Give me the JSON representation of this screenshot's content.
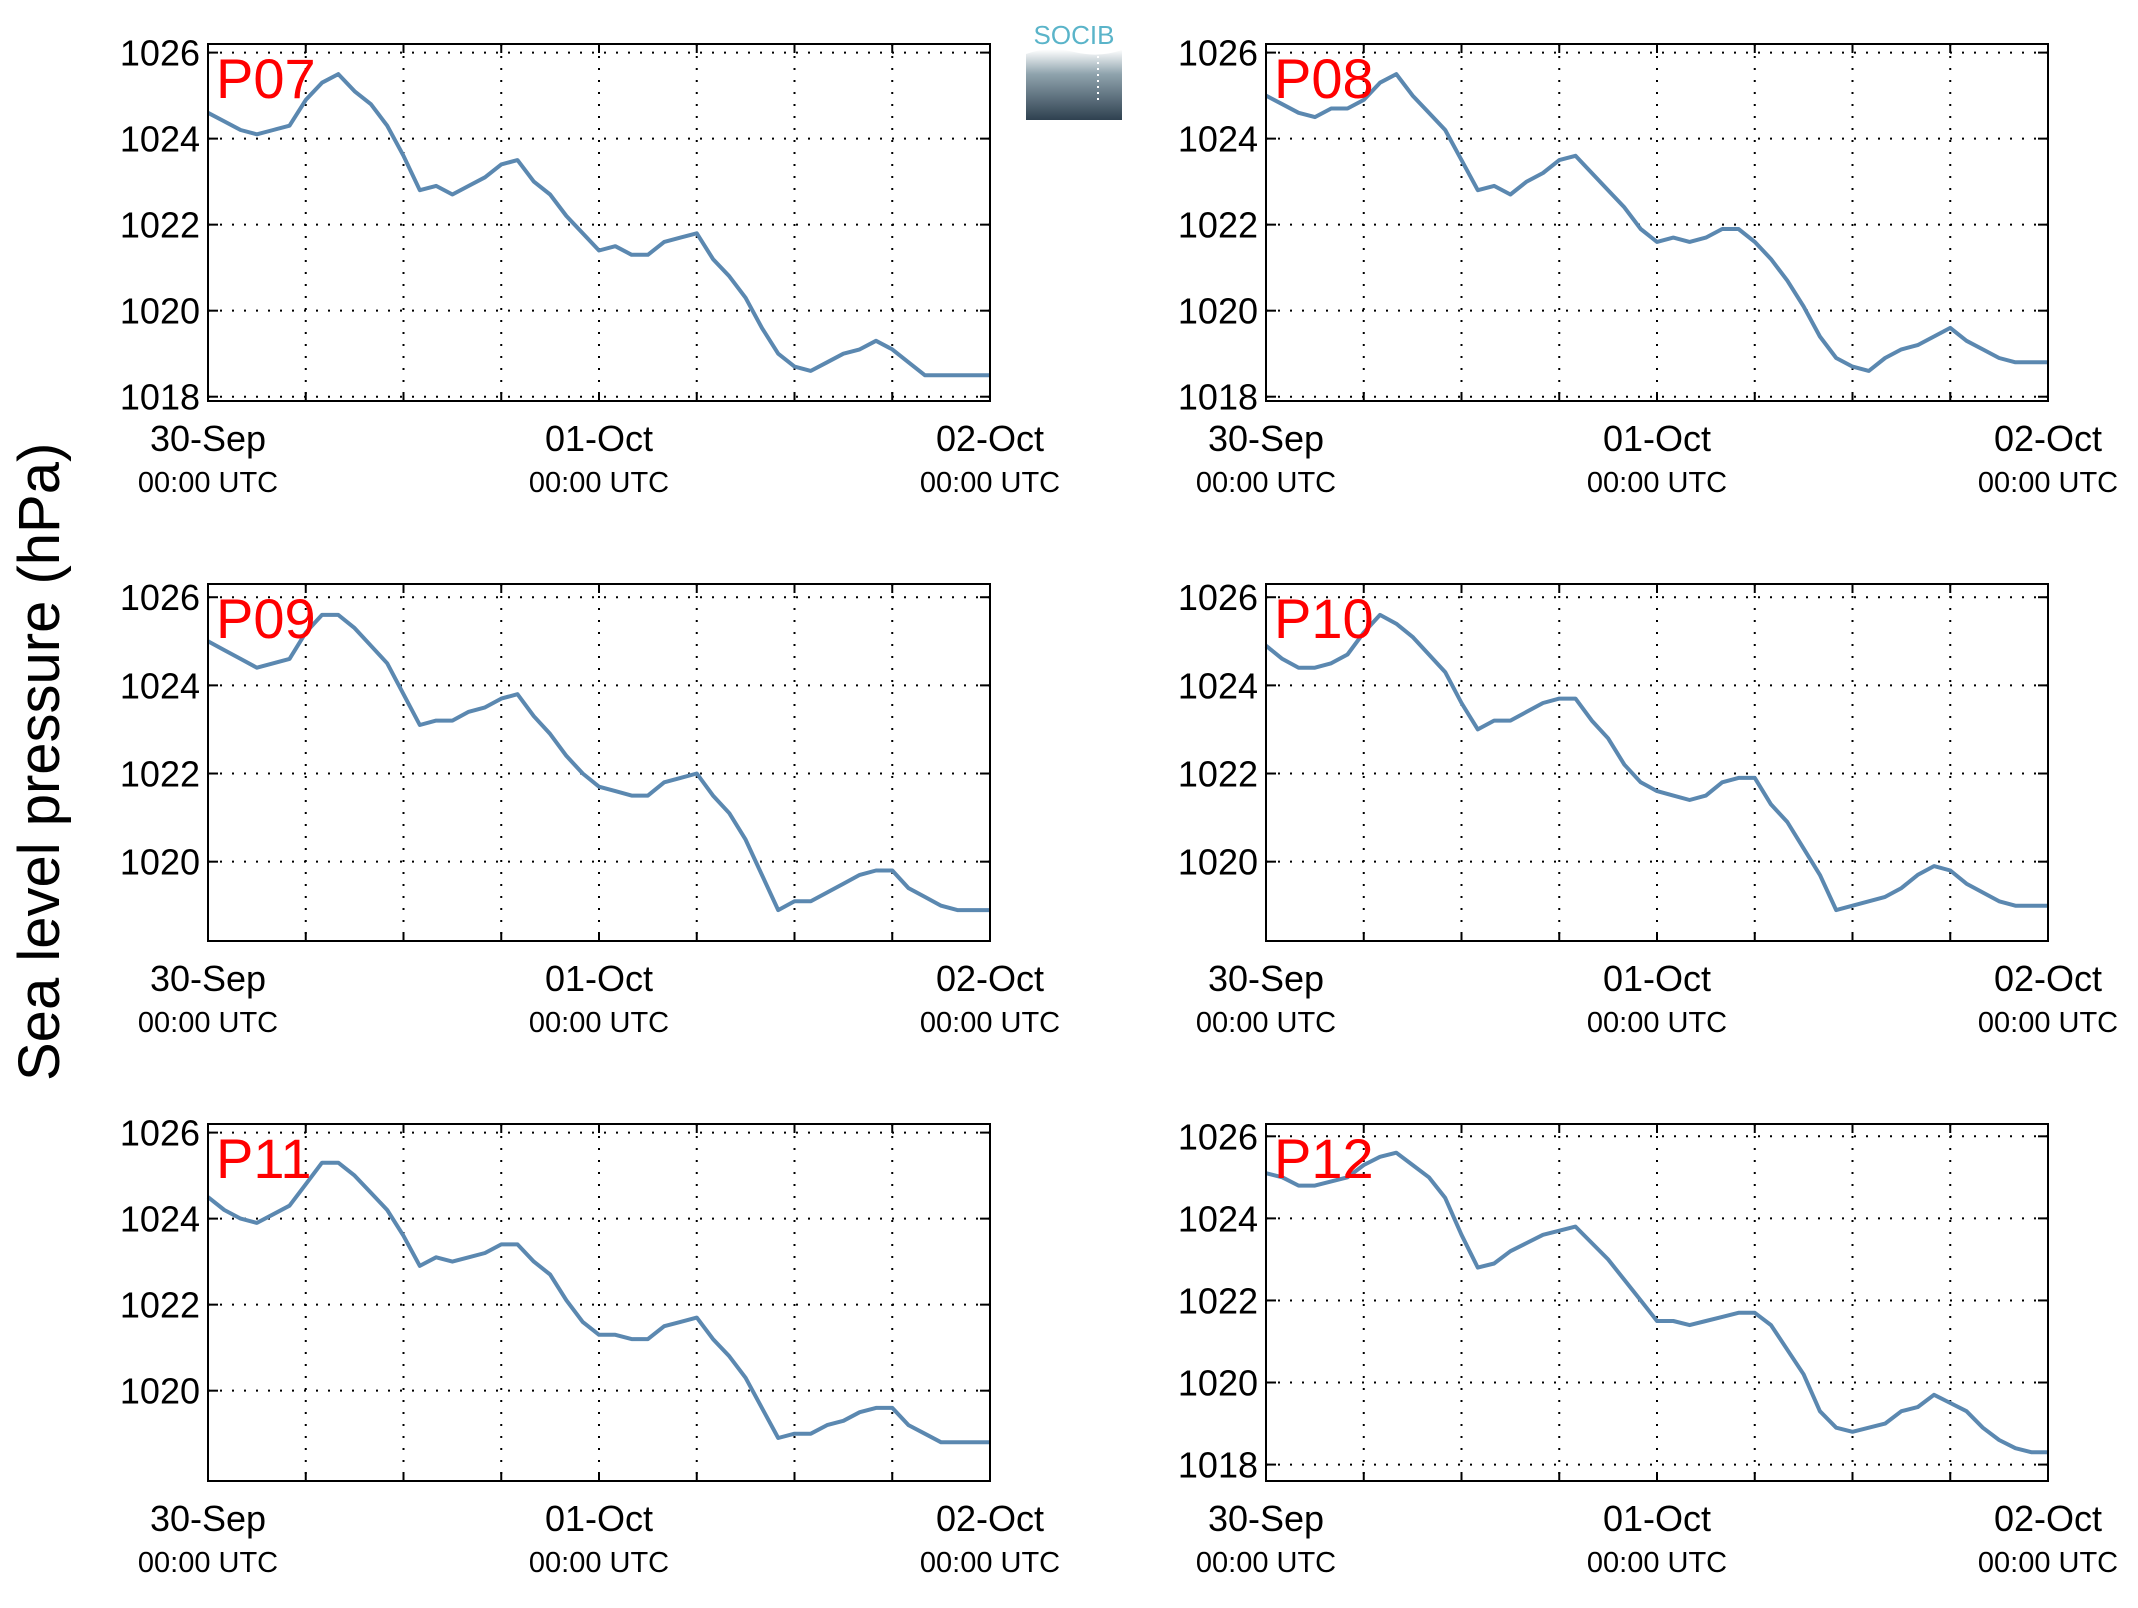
{
  "figure": {
    "ylabel": "Sea level pressure (hPa)",
    "logo_text": "SOCIB",
    "colors": {
      "line": "#5b88b0",
      "station_label": "#ff0000",
      "axis": "#000000",
      "grid": "#000000",
      "logo_top": "#5ab4c9",
      "logo_bottom": "#2f4150"
    }
  },
  "chart_data": [
    {
      "type": "line",
      "title": "P07",
      "xlabel": "",
      "ylabel": "Sea level pressure (hPa)",
      "xlim_hours": [
        0,
        48
      ],
      "ylim": [
        1017.9,
        1026.2
      ],
      "yticks": [
        1018,
        1020,
        1022,
        1024,
        1026
      ],
      "xticks": [
        {
          "top": "30-Sep",
          "bottom": "00:00 UTC"
        },
        {
          "top": "01-Oct",
          "bottom": "00:00 UTC"
        },
        {
          "top": "02-Oct",
          "bottom": "00:00 UTC"
        }
      ],
      "grid": true,
      "series": [
        {
          "x": [
            0,
            1,
            2,
            3,
            4,
            5,
            6,
            7,
            8,
            9,
            10,
            11,
            12,
            13,
            14,
            15,
            16,
            17,
            18,
            19,
            20,
            21,
            22,
            23,
            24,
            25,
            26,
            27,
            28,
            29,
            30,
            31,
            32,
            33,
            34,
            35,
            36,
            37,
            38,
            39,
            40,
            41,
            42,
            43,
            44,
            45,
            46,
            47,
            48
          ],
          "values": [
            1024.6,
            1024.4,
            1024.2,
            1024.1,
            1024.2,
            1024.3,
            1024.9,
            1025.3,
            1025.5,
            1025.1,
            1024.8,
            1024.3,
            1023.6,
            1022.8,
            1022.9,
            1022.7,
            1022.9,
            1023.1,
            1023.4,
            1023.5,
            1023.0,
            1022.7,
            1022.2,
            1021.8,
            1021.4,
            1021.5,
            1021.3,
            1021.3,
            1021.6,
            1021.7,
            1021.8,
            1021.2,
            1020.8,
            1020.3,
            1019.6,
            1019.0,
            1018.7,
            1018.6,
            1018.8,
            1019.0,
            1019.1,
            1019.3,
            1019.1,
            1018.8,
            1018.5,
            1018.5,
            1018.5,
            1018.5,
            1018.5
          ]
        }
      ]
    },
    {
      "type": "line",
      "title": "P08",
      "xlabel": "",
      "ylabel": "Sea level pressure (hPa)",
      "xlim_hours": [
        0,
        48
      ],
      "ylim": [
        1017.9,
        1026.2
      ],
      "yticks": [
        1018,
        1020,
        1022,
        1024,
        1026
      ],
      "xticks": [
        {
          "top": "30-Sep",
          "bottom": "00:00 UTC"
        },
        {
          "top": "01-Oct",
          "bottom": "00:00 UTC"
        },
        {
          "top": "02-Oct",
          "bottom": "00:00 UTC"
        }
      ],
      "grid": true,
      "series": [
        {
          "x": [
            0,
            1,
            2,
            3,
            4,
            5,
            6,
            7,
            8,
            9,
            10,
            11,
            12,
            13,
            14,
            15,
            16,
            17,
            18,
            19,
            20,
            21,
            22,
            23,
            24,
            25,
            26,
            27,
            28,
            29,
            30,
            31,
            32,
            33,
            34,
            35,
            36,
            37,
            38,
            39,
            40,
            41,
            42,
            43,
            44,
            45,
            46,
            47,
            48
          ],
          "values": [
            1025.0,
            1024.8,
            1024.6,
            1024.5,
            1024.7,
            1024.7,
            1024.9,
            1025.3,
            1025.5,
            1025.0,
            1024.6,
            1024.2,
            1023.5,
            1022.8,
            1022.9,
            1022.7,
            1023.0,
            1023.2,
            1023.5,
            1023.6,
            1023.2,
            1022.8,
            1022.4,
            1021.9,
            1021.6,
            1021.7,
            1021.6,
            1021.7,
            1021.9,
            1021.9,
            1021.6,
            1021.2,
            1020.7,
            1020.1,
            1019.4,
            1018.9,
            1018.7,
            1018.6,
            1018.9,
            1019.1,
            1019.2,
            1019.4,
            1019.6,
            1019.3,
            1019.1,
            1018.9,
            1018.8,
            1018.8,
            1018.8
          ]
        }
      ]
    },
    {
      "type": "line",
      "title": "P09",
      "xlabel": "",
      "ylabel": "Sea level pressure (hPa)",
      "xlim_hours": [
        0,
        48
      ],
      "ylim": [
        1018.2,
        1026.3
      ],
      "yticks": [
        1020,
        1022,
        1024,
        1026
      ],
      "xticks": [
        {
          "top": "30-Sep",
          "bottom": "00:00 UTC"
        },
        {
          "top": "01-Oct",
          "bottom": "00:00 UTC"
        },
        {
          "top": "02-Oct",
          "bottom": "00:00 UTC"
        }
      ],
      "grid": true,
      "series": [
        {
          "x": [
            0,
            1,
            2,
            3,
            4,
            5,
            6,
            7,
            8,
            9,
            10,
            11,
            12,
            13,
            14,
            15,
            16,
            17,
            18,
            19,
            20,
            21,
            22,
            23,
            24,
            25,
            26,
            27,
            28,
            29,
            30,
            31,
            32,
            33,
            34,
            35,
            36,
            37,
            38,
            39,
            40,
            41,
            42,
            43,
            44,
            45,
            46,
            47,
            48
          ],
          "values": [
            1025.0,
            1024.8,
            1024.6,
            1024.4,
            1024.5,
            1024.6,
            1025.2,
            1025.6,
            1025.6,
            1025.3,
            1024.9,
            1024.5,
            1023.8,
            1023.1,
            1023.2,
            1023.2,
            1023.4,
            1023.5,
            1023.7,
            1023.8,
            1023.3,
            1022.9,
            1022.4,
            1022.0,
            1021.7,
            1021.6,
            1021.5,
            1021.5,
            1021.8,
            1021.9,
            1022.0,
            1021.5,
            1021.1,
            1020.5,
            1019.7,
            1018.9,
            1019.1,
            1019.1,
            1019.3,
            1019.5,
            1019.7,
            1019.8,
            1019.8,
            1019.4,
            1019.2,
            1019.0,
            1018.9,
            1018.9,
            1018.9
          ]
        }
      ]
    },
    {
      "type": "line",
      "title": "P10",
      "xlabel": "",
      "ylabel": "Sea level pressure (hPa)",
      "xlim_hours": [
        0,
        48
      ],
      "ylim": [
        1018.2,
        1026.3
      ],
      "yticks": [
        1020,
        1022,
        1024,
        1026
      ],
      "xticks": [
        {
          "top": "30-Sep",
          "bottom": "00:00 UTC"
        },
        {
          "top": "01-Oct",
          "bottom": "00:00 UTC"
        },
        {
          "top": "02-Oct",
          "bottom": "00:00 UTC"
        }
      ],
      "grid": true,
      "series": [
        {
          "x": [
            0,
            1,
            2,
            3,
            4,
            5,
            6,
            7,
            8,
            9,
            10,
            11,
            12,
            13,
            14,
            15,
            16,
            17,
            18,
            19,
            20,
            21,
            22,
            23,
            24,
            25,
            26,
            27,
            28,
            29,
            30,
            31,
            32,
            33,
            34,
            35,
            36,
            37,
            38,
            39,
            40,
            41,
            42,
            43,
            44,
            45,
            46,
            47,
            48
          ],
          "values": [
            1024.9,
            1024.6,
            1024.4,
            1024.4,
            1024.5,
            1024.7,
            1025.2,
            1025.6,
            1025.4,
            1025.1,
            1024.7,
            1024.3,
            1023.6,
            1023.0,
            1023.2,
            1023.2,
            1023.4,
            1023.6,
            1023.7,
            1023.7,
            1023.2,
            1022.8,
            1022.2,
            1021.8,
            1021.6,
            1021.5,
            1021.4,
            1021.5,
            1021.8,
            1021.9,
            1021.9,
            1021.3,
            1020.9,
            1020.3,
            1019.7,
            1018.9,
            1019.0,
            1019.1,
            1019.2,
            1019.4,
            1019.7,
            1019.9,
            1019.8,
            1019.5,
            1019.3,
            1019.1,
            1019.0,
            1019.0,
            1019.0
          ]
        }
      ]
    },
    {
      "type": "line",
      "title": "P11",
      "xlabel": "",
      "ylabel": "Sea level pressure (hPa)",
      "xlim_hours": [
        0,
        48
      ],
      "ylim": [
        1017.9,
        1026.2
      ],
      "yticks": [
        1020,
        1022,
        1024,
        1026
      ],
      "xticks": [
        {
          "top": "30-Sep",
          "bottom": "00:00 UTC"
        },
        {
          "top": "01-Oct",
          "bottom": "00:00 UTC"
        },
        {
          "top": "02-Oct",
          "bottom": "00:00 UTC"
        }
      ],
      "grid": true,
      "series": [
        {
          "x": [
            0,
            1,
            2,
            3,
            4,
            5,
            6,
            7,
            8,
            9,
            10,
            11,
            12,
            13,
            14,
            15,
            16,
            17,
            18,
            19,
            20,
            21,
            22,
            23,
            24,
            25,
            26,
            27,
            28,
            29,
            30,
            31,
            32,
            33,
            34,
            35,
            36,
            37,
            38,
            39,
            40,
            41,
            42,
            43,
            44,
            45,
            46,
            47,
            48
          ],
          "values": [
            1024.5,
            1024.2,
            1024.0,
            1023.9,
            1024.1,
            1024.3,
            1024.8,
            1025.3,
            1025.3,
            1025.0,
            1024.6,
            1024.2,
            1023.6,
            1022.9,
            1023.1,
            1023.0,
            1023.1,
            1023.2,
            1023.4,
            1023.4,
            1023.0,
            1022.7,
            1022.1,
            1021.6,
            1021.3,
            1021.3,
            1021.2,
            1021.2,
            1021.5,
            1021.6,
            1021.7,
            1021.2,
            1020.8,
            1020.3,
            1019.6,
            1018.9,
            1019.0,
            1019.0,
            1019.2,
            1019.3,
            1019.5,
            1019.6,
            1019.6,
            1019.2,
            1019.0,
            1018.8,
            1018.8,
            1018.8,
            1018.8
          ]
        }
      ]
    },
    {
      "type": "line",
      "title": "P12",
      "xlabel": "",
      "ylabel": "Sea level pressure (hPa)",
      "xlim_hours": [
        0,
        48
      ],
      "ylim": [
        1017.6,
        1026.3
      ],
      "yticks": [
        1018,
        1020,
        1022,
        1024,
        1026
      ],
      "xticks": [
        {
          "top": "30-Sep",
          "bottom": "00:00 UTC"
        },
        {
          "top": "01-Oct",
          "bottom": "00:00 UTC"
        },
        {
          "top": "02-Oct",
          "bottom": "00:00 UTC"
        }
      ],
      "grid": true,
      "series": [
        {
          "x": [
            0,
            1,
            2,
            3,
            4,
            5,
            6,
            7,
            8,
            9,
            10,
            11,
            12,
            13,
            14,
            15,
            16,
            17,
            18,
            19,
            20,
            21,
            22,
            23,
            24,
            25,
            26,
            27,
            28,
            29,
            30,
            31,
            32,
            33,
            34,
            35,
            36,
            37,
            38,
            39,
            40,
            41,
            42,
            43,
            44,
            45,
            46,
            47,
            48
          ],
          "values": [
            1025.1,
            1025.0,
            1024.8,
            1024.8,
            1024.9,
            1025.0,
            1025.3,
            1025.5,
            1025.6,
            1025.3,
            1025.0,
            1024.5,
            1023.6,
            1022.8,
            1022.9,
            1023.2,
            1023.4,
            1023.6,
            1023.7,
            1023.8,
            1023.4,
            1023.0,
            1022.5,
            1022.0,
            1021.5,
            1021.5,
            1021.4,
            1021.5,
            1021.6,
            1021.7,
            1021.7,
            1021.4,
            1020.8,
            1020.2,
            1019.3,
            1018.9,
            1018.8,
            1018.9,
            1019.0,
            1019.3,
            1019.4,
            1019.7,
            1019.5,
            1019.3,
            1018.9,
            1018.6,
            1018.4,
            1018.3,
            1018.3
          ]
        }
      ]
    }
  ]
}
